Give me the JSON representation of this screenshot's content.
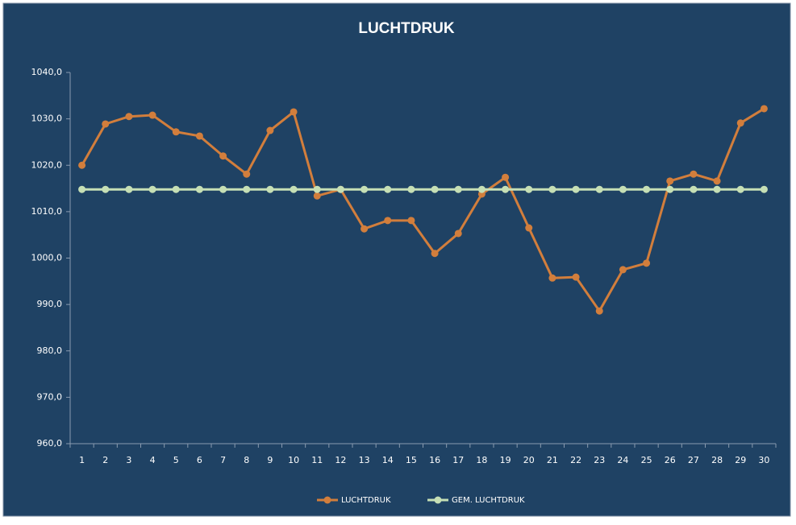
{
  "chart_data": {
    "type": "line",
    "title": "LUCHTDRUK",
    "categories": [
      "1",
      "2",
      "3",
      "4",
      "5",
      "6",
      "7",
      "8",
      "9",
      "10",
      "11",
      "12",
      "13",
      "14",
      "15",
      "16",
      "17",
      "18",
      "19",
      "20",
      "21",
      "22",
      "23",
      "24",
      "25",
      "26",
      "27",
      "28",
      "29",
      "30"
    ],
    "series": [
      {
        "name": "LUCHTDRUK",
        "color": "#d27e3c",
        "values": [
          1020.0,
          1028.9,
          1030.5,
          1030.8,
          1027.2,
          1026.3,
          1022.0,
          1018.1,
          1027.5,
          1031.5,
          1013.4,
          1014.8,
          1006.3,
          1008.1,
          1008.1,
          1001.0,
          1005.3,
          1013.8,
          1017.4,
          1006.5,
          995.7,
          995.9,
          988.6,
          997.5,
          998.9,
          1016.6,
          1018.1,
          1016.6,
          1029.1,
          1032.2
        ]
      },
      {
        "name": "GEM. LUCHTDRUK",
        "color": "#c6dfb5",
        "values": [
          1014.8,
          1014.8,
          1014.8,
          1014.8,
          1014.8,
          1014.8,
          1014.8,
          1014.8,
          1014.8,
          1014.8,
          1014.8,
          1014.8,
          1014.8,
          1014.8,
          1014.8,
          1014.8,
          1014.8,
          1014.8,
          1014.8,
          1014.8,
          1014.8,
          1014.8,
          1014.8,
          1014.8,
          1014.8,
          1014.8,
          1014.8,
          1014.8,
          1014.8,
          1014.8
        ]
      }
    ],
    "ylim": [
      960,
      1040
    ],
    "yticks": [
      {
        "value": 960,
        "label": "960,0"
      },
      {
        "value": 970,
        "label": "970,0"
      },
      {
        "value": 980,
        "label": "980,0"
      },
      {
        "value": 990,
        "label": "990,0"
      },
      {
        "value": 1000,
        "label": "1000,0"
      },
      {
        "value": 1010,
        "label": "1010,0"
      },
      {
        "value": 1020,
        "label": "1020,0"
      },
      {
        "value": 1030,
        "label": "1030,0"
      },
      {
        "value": 1040,
        "label": "1040,0"
      }
    ],
    "grid": false,
    "legend": "bottom"
  }
}
